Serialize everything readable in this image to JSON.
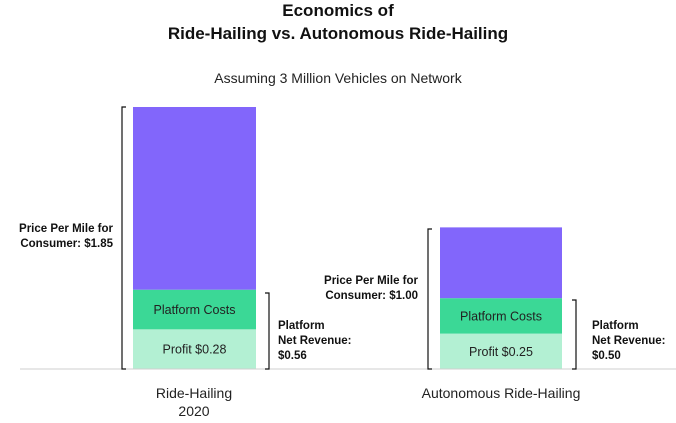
{
  "chart_data": {
    "type": "bar",
    "stacked": true,
    "title_line1": "Economics of",
    "title_line2": "Ride-Hailing vs. Autonomous Ride-Hailing",
    "subtitle": "Assuming 3 Million Vehicles on Network",
    "categories": [
      {
        "line1": "Ride-Hailing",
        "line2": "2020"
      },
      {
        "line1": "Autonomous Ride-Hailing",
        "line2": ""
      }
    ],
    "series": [
      {
        "label": "Profit",
        "color": "#b3f0d3"
      },
      {
        "label": "Platform Costs",
        "color": "#3bd896"
      },
      {
        "label": "",
        "color": "#8266fb"
      }
    ],
    "segment_values": [
      [
        0.28,
        0.28,
        1.29
      ],
      [
        0.25,
        0.25,
        0.5
      ]
    ],
    "segment_labels": [
      [
        "Profit $0.28",
        "Platform Costs",
        ""
      ],
      [
        "Profit $0.25",
        "Platform Costs",
        ""
      ]
    ],
    "price_annotations": [
      {
        "line1": "Price Per Mile for",
        "line2": "Consumer: $1.85",
        "value": 1.85
      },
      {
        "line1": "Price Per Mile for",
        "line2": "Consumer: $1.00",
        "value": 1.0
      }
    ],
    "revenue_annotations": [
      {
        "line1": "Platform",
        "line2": "Net Revenue:",
        "line3": "$0.56",
        "value": 0.56
      },
      {
        "line1": "Platform",
        "line2": "Net Revenue:",
        "line3": "$0.50",
        "value": 0.5
      }
    ],
    "ylim": [
      0,
      1.85
    ]
  }
}
